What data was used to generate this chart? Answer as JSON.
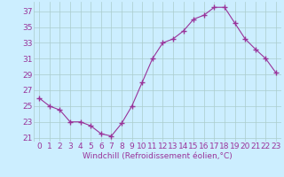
{
  "x": [
    0,
    1,
    2,
    3,
    4,
    5,
    6,
    7,
    8,
    9,
    10,
    11,
    12,
    13,
    14,
    15,
    16,
    17,
    18,
    19,
    20,
    21,
    22,
    23
  ],
  "y": [
    26.0,
    25.0,
    24.5,
    23.0,
    23.0,
    22.5,
    21.5,
    21.2,
    22.8,
    25.0,
    28.0,
    31.0,
    33.0,
    33.5,
    34.5,
    36.0,
    36.5,
    37.5,
    37.5,
    35.5,
    33.5,
    32.2,
    31.0,
    29.2
  ],
  "line_color": "#993399",
  "marker": "+",
  "bg_color": "#cceeff",
  "grid_color": "#aacccc",
  "xlabel": "Windchill (Refroidissement éolien,°C)",
  "ylim": [
    20.5,
    38.2
  ],
  "yticks": [
    21,
    23,
    25,
    27,
    29,
    31,
    33,
    35,
    37
  ],
  "xlim": [
    -0.5,
    23.5
  ],
  "xticks": [
    0,
    1,
    2,
    3,
    4,
    5,
    6,
    7,
    8,
    9,
    10,
    11,
    12,
    13,
    14,
    15,
    16,
    17,
    18,
    19,
    20,
    21,
    22,
    23
  ],
  "font_color": "#993399",
  "font_size": 6.5
}
